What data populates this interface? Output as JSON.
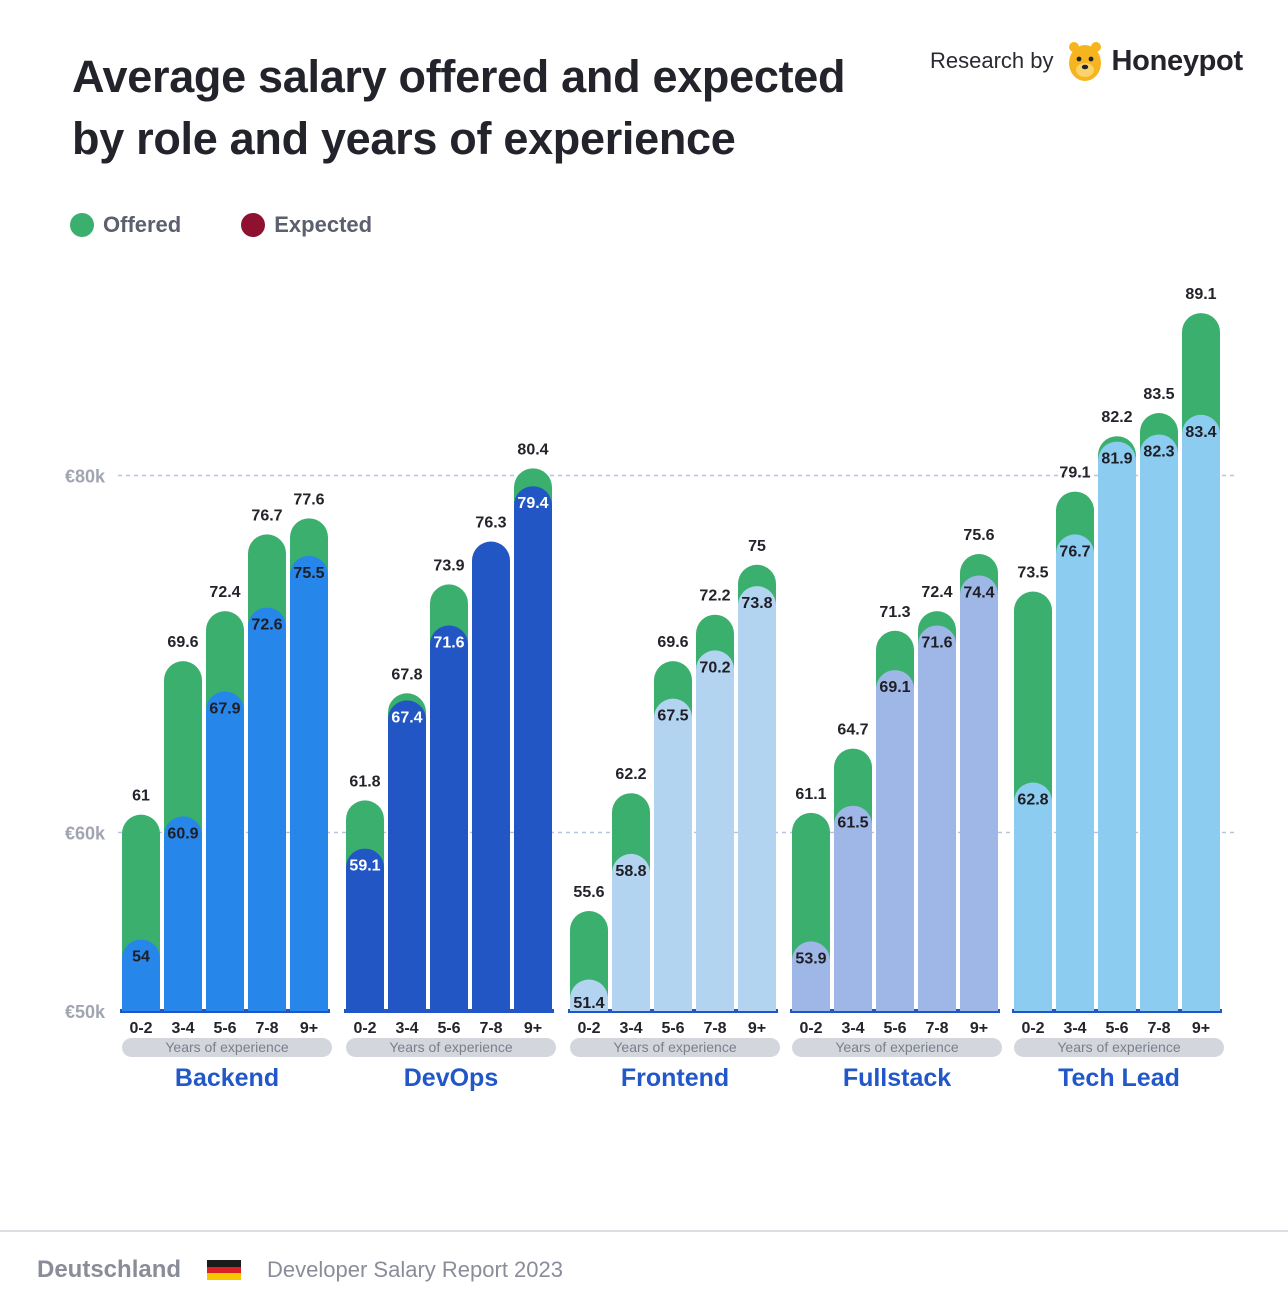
{
  "header": {
    "title": "Average salary offered and expected by role and years of experience",
    "research_label": "Research by",
    "brand_name": "Honeypot",
    "brand_icon": "bear-logo-icon"
  },
  "legend": [
    {
      "label": "Offered",
      "color": "#3aaf6e"
    },
    {
      "label": "Expected",
      "color": "#8e1230"
    }
  ],
  "footer": {
    "country": "Deutschland",
    "country_flag": "germany-flag-icon",
    "report": "Developer Salary Report 2023"
  },
  "chart_data": {
    "type": "bar",
    "title": "Average salary offered and expected by role and years of experience",
    "y_ticks": [
      "€50k",
      "€60k",
      "€80k"
    ],
    "ylim": [
      50,
      90
    ],
    "grid": "dashed lines at €60k and €80k",
    "legend_position": "top-left",
    "categories": [
      "0-2",
      "3-4",
      "5-6",
      "7-8",
      "9+"
    ],
    "xlabel": "Years of experience",
    "colors": {
      "offered": "#3aaf6e",
      "expected": "#8e1230",
      "baseline": "#2256c8"
    },
    "groups": [
      {
        "name": "Backend",
        "color": "#2786ea",
        "label_color": "#1e1e24",
        "offered": [
          61,
          69.6,
          72.4,
          76.7,
          77.6
        ],
        "expected": [
          54,
          60.9,
          67.9,
          72.6,
          75.5
        ]
      },
      {
        "name": "DevOps",
        "color": "#2156c4",
        "label_color": "#ffffff",
        "offered": [
          61.8,
          67.8,
          73.9,
          76.3,
          80.4
        ],
        "expected": [
          59.1,
          67.4,
          71.6,
          76.3,
          79.4
        ]
      },
      {
        "name": "Frontend",
        "color": "#b2d4f1",
        "label_color": "#1e1e24",
        "offered": [
          55.6,
          62.2,
          69.6,
          72.2,
          75
        ],
        "expected": [
          51.4,
          58.8,
          67.5,
          70.2,
          73.8
        ]
      },
      {
        "name": "Fullstack",
        "color": "#9eb7e7",
        "label_color": "#1e1e24",
        "offered": [
          61.1,
          64.7,
          71.3,
          72.4,
          75.6
        ],
        "expected": [
          53.9,
          61.5,
          69.1,
          71.6,
          74.4
        ]
      },
      {
        "name": "Tech Lead",
        "color": "#8dccf1",
        "label_color": "#1e1e24",
        "offered": [
          73.5,
          79.1,
          82.2,
          83.5,
          89.1
        ],
        "expected": [
          62.8,
          76.7,
          81.9,
          82.3,
          83.4
        ]
      }
    ]
  }
}
